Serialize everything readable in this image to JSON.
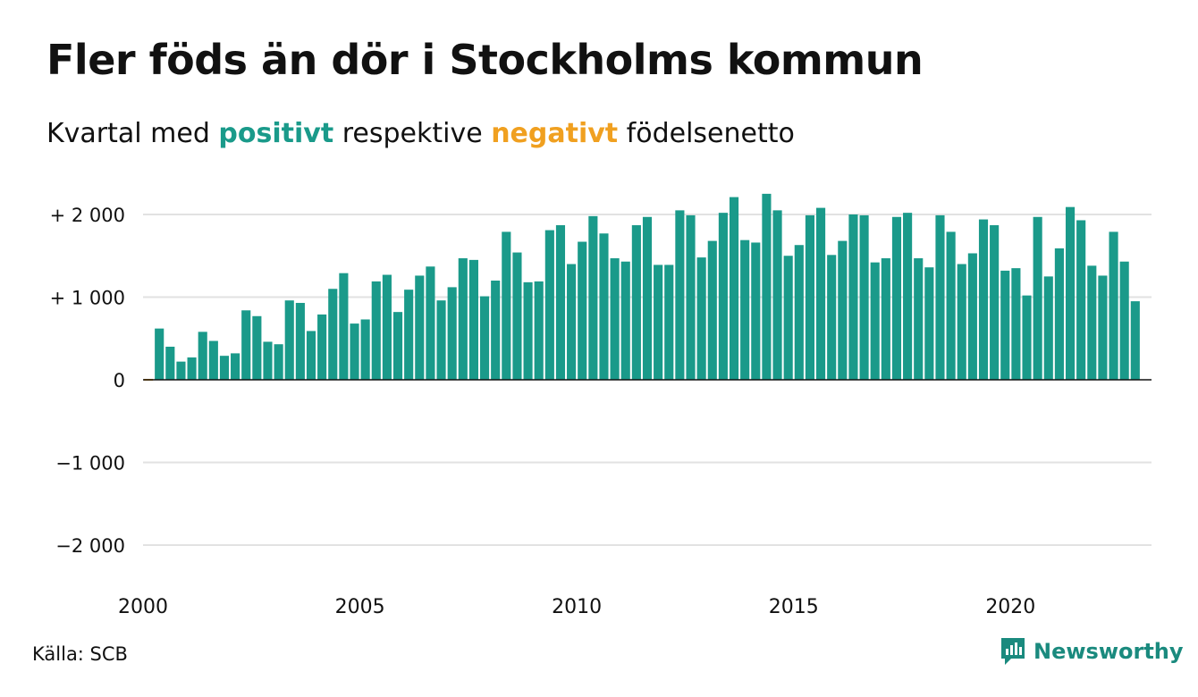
{
  "title": "Fler föds än dör i Stockholms kommun",
  "subtitle": {
    "before": "Kvartal med ",
    "positive": "positivt",
    "middle": " respektive ",
    "negative": "negativt",
    "after": " födelsenetto"
  },
  "source": "Källa: SCB",
  "brand": "Newsworthy",
  "colors": {
    "positive": "#1a9a8a",
    "negative": "#f0a020",
    "brand": "#1a8a7e",
    "grid": "#e2e2e2"
  },
  "chart_data": {
    "type": "bar",
    "xlim": [
      2000,
      2023.25
    ],
    "ylim": [
      -2000,
      2300
    ],
    "yticks": [
      {
        "value": 2000,
        "label": "+ 2 000"
      },
      {
        "value": 1000,
        "label": "+ 1 000"
      },
      {
        "value": 0,
        "label": "0"
      },
      {
        "value": -1000,
        "label": "−1 000"
      },
      {
        "value": -2000,
        "label": "−2 000"
      }
    ],
    "xticks": [
      {
        "value": 2000,
        "label": "2000"
      },
      {
        "value": 2005,
        "label": "2005"
      },
      {
        "value": 2010,
        "label": "2010"
      },
      {
        "value": 2015,
        "label": "2015"
      },
      {
        "value": 2020,
        "label": "2020"
      }
    ],
    "quarters": [
      {
        "year": 2000,
        "q": 1,
        "v": 0
      },
      {
        "year": 2000,
        "q": 2,
        "v": 620
      },
      {
        "year": 2000,
        "q": 3,
        "v": 400
      },
      {
        "year": 2000,
        "q": 4,
        "v": 220
      },
      {
        "year": 2001,
        "q": 1,
        "v": 270
      },
      {
        "year": 2001,
        "q": 2,
        "v": 580
      },
      {
        "year": 2001,
        "q": 3,
        "v": 470
      },
      {
        "year": 2001,
        "q": 4,
        "v": 290
      },
      {
        "year": 2002,
        "q": 1,
        "v": 320
      },
      {
        "year": 2002,
        "q": 2,
        "v": 840
      },
      {
        "year": 2002,
        "q": 3,
        "v": 770
      },
      {
        "year": 2002,
        "q": 4,
        "v": 460
      },
      {
        "year": 2003,
        "q": 1,
        "v": 430
      },
      {
        "year": 2003,
        "q": 2,
        "v": 960
      },
      {
        "year": 2003,
        "q": 3,
        "v": 930
      },
      {
        "year": 2003,
        "q": 4,
        "v": 590
      },
      {
        "year": 2004,
        "q": 1,
        "v": 790
      },
      {
        "year": 2004,
        "q": 2,
        "v": 1100
      },
      {
        "year": 2004,
        "q": 3,
        "v": 1290
      },
      {
        "year": 2004,
        "q": 4,
        "v": 680
      },
      {
        "year": 2005,
        "q": 1,
        "v": 730
      },
      {
        "year": 2005,
        "q": 2,
        "v": 1190
      },
      {
        "year": 2005,
        "q": 3,
        "v": 1270
      },
      {
        "year": 2005,
        "q": 4,
        "v": 820
      },
      {
        "year": 2006,
        "q": 1,
        "v": 1090
      },
      {
        "year": 2006,
        "q": 2,
        "v": 1260
      },
      {
        "year": 2006,
        "q": 3,
        "v": 1370
      },
      {
        "year": 2006,
        "q": 4,
        "v": 960
      },
      {
        "year": 2007,
        "q": 1,
        "v": 1120
      },
      {
        "year": 2007,
        "q": 2,
        "v": 1470
      },
      {
        "year": 2007,
        "q": 3,
        "v": 1450
      },
      {
        "year": 2007,
        "q": 4,
        "v": 1010
      },
      {
        "year": 2008,
        "q": 1,
        "v": 1200
      },
      {
        "year": 2008,
        "q": 2,
        "v": 1790
      },
      {
        "year": 2008,
        "q": 3,
        "v": 1540
      },
      {
        "year": 2008,
        "q": 4,
        "v": 1180
      },
      {
        "year": 2009,
        "q": 1,
        "v": 1190
      },
      {
        "year": 2009,
        "q": 2,
        "v": 1810
      },
      {
        "year": 2009,
        "q": 3,
        "v": 1870
      },
      {
        "year": 2009,
        "q": 4,
        "v": 1400
      },
      {
        "year": 2010,
        "q": 1,
        "v": 1670
      },
      {
        "year": 2010,
        "q": 2,
        "v": 1980
      },
      {
        "year": 2010,
        "q": 3,
        "v": 1770
      },
      {
        "year": 2010,
        "q": 4,
        "v": 1470
      },
      {
        "year": 2011,
        "q": 1,
        "v": 1430
      },
      {
        "year": 2011,
        "q": 2,
        "v": 1870
      },
      {
        "year": 2011,
        "q": 3,
        "v": 1970
      },
      {
        "year": 2011,
        "q": 4,
        "v": 1390
      },
      {
        "year": 2012,
        "q": 1,
        "v": 1390
      },
      {
        "year": 2012,
        "q": 2,
        "v": 2050
      },
      {
        "year": 2012,
        "q": 3,
        "v": 1990
      },
      {
        "year": 2012,
        "q": 4,
        "v": 1480
      },
      {
        "year": 2013,
        "q": 1,
        "v": 1680
      },
      {
        "year": 2013,
        "q": 2,
        "v": 2020
      },
      {
        "year": 2013,
        "q": 3,
        "v": 2210
      },
      {
        "year": 2013,
        "q": 4,
        "v": 1690
      },
      {
        "year": 2014,
        "q": 1,
        "v": 1660
      },
      {
        "year": 2014,
        "q": 2,
        "v": 2250
      },
      {
        "year": 2014,
        "q": 3,
        "v": 2050
      },
      {
        "year": 2014,
        "q": 4,
        "v": 1500
      },
      {
        "year": 2015,
        "q": 1,
        "v": 1630
      },
      {
        "year": 2015,
        "q": 2,
        "v": 1990
      },
      {
        "year": 2015,
        "q": 3,
        "v": 2080
      },
      {
        "year": 2015,
        "q": 4,
        "v": 1510
      },
      {
        "year": 2016,
        "q": 1,
        "v": 1680
      },
      {
        "year": 2016,
        "q": 2,
        "v": 2000
      },
      {
        "year": 2016,
        "q": 3,
        "v": 1990
      },
      {
        "year": 2016,
        "q": 4,
        "v": 1420
      },
      {
        "year": 2017,
        "q": 1,
        "v": 1470
      },
      {
        "year": 2017,
        "q": 2,
        "v": 1970
      },
      {
        "year": 2017,
        "q": 3,
        "v": 2020
      },
      {
        "year": 2017,
        "q": 4,
        "v": 1470
      },
      {
        "year": 2018,
        "q": 1,
        "v": 1360
      },
      {
        "year": 2018,
        "q": 2,
        "v": 1990
      },
      {
        "year": 2018,
        "q": 3,
        "v": 1790
      },
      {
        "year": 2018,
        "q": 4,
        "v": 1400
      },
      {
        "year": 2019,
        "q": 1,
        "v": 1530
      },
      {
        "year": 2019,
        "q": 2,
        "v": 1940
      },
      {
        "year": 2019,
        "q": 3,
        "v": 1870
      },
      {
        "year": 2019,
        "q": 4,
        "v": 1320
      },
      {
        "year": 2020,
        "q": 1,
        "v": 1350
      },
      {
        "year": 2020,
        "q": 2,
        "v": 1020
      },
      {
        "year": 2020,
        "q": 3,
        "v": 1970
      },
      {
        "year": 2020,
        "q": 4,
        "v": 1250
      },
      {
        "year": 2021,
        "q": 1,
        "v": 1590
      },
      {
        "year": 2021,
        "q": 2,
        "v": 2090
      },
      {
        "year": 2021,
        "q": 3,
        "v": 1930
      },
      {
        "year": 2021,
        "q": 4,
        "v": 1380
      },
      {
        "year": 2022,
        "q": 1,
        "v": 1260
      },
      {
        "year": 2022,
        "q": 2,
        "v": 1790
      },
      {
        "year": 2022,
        "q": 3,
        "v": 1430
      },
      {
        "year": 2022,
        "q": 4,
        "v": 950
      }
    ]
  }
}
